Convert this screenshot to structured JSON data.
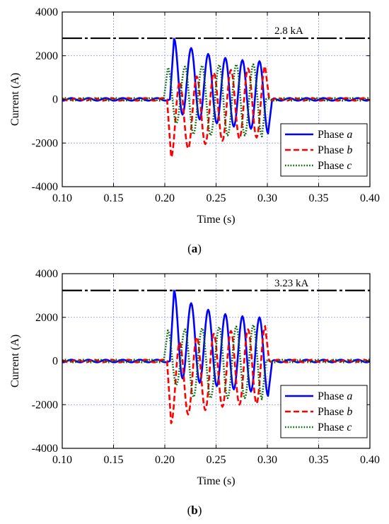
{
  "chart_data": [
    {
      "type": "line",
      "panel_label": "a",
      "xlabel": "Time (s)",
      "ylabel": "Current (A)",
      "xlim": [
        0.1,
        0.4
      ],
      "ylim": [
        -4000,
        4000
      ],
      "xticks": [
        "0.10",
        "0.15",
        "0.20",
        "0.25",
        "0.30",
        "0.35",
        "0.40"
      ],
      "yticks": [
        "-4000",
        "-2000",
        "0",
        "2000",
        "4000"
      ],
      "grid": true,
      "legend_position": "bottom-right",
      "peak_line": {
        "value": 2800,
        "label": "2.8 kA"
      },
      "series": [
        {
          "name": "Phase a",
          "color": "#0000ff",
          "style": "solid",
          "peaks": [
            [
              0.209,
              2780
            ],
            [
              0.2257,
              2350
            ],
            [
              0.2423,
              2080
            ],
            [
              0.259,
              1900
            ],
            [
              0.2757,
              1800
            ],
            [
              0.2923,
              1750
            ]
          ],
          "troughs": [
            [
              0.2173,
              -700
            ],
            [
              0.234,
              -920
            ],
            [
              0.2507,
              -1100
            ],
            [
              0.2673,
              -1250
            ],
            [
              0.284,
              -1350
            ],
            [
              0.3007,
              -1560
            ]
          ]
        },
        {
          "name": "Phase b",
          "color": "#ff0000",
          "style": "dashed",
          "peaks": [
            [
              0.2145,
              800
            ],
            [
              0.2312,
              1050
            ],
            [
              0.2478,
              1220
            ],
            [
              0.2645,
              1350
            ],
            [
              0.2812,
              1420
            ],
            [
              0.2978,
              1520
            ]
          ],
          "troughs": [
            [
              0.2062,
              -2650
            ],
            [
              0.2228,
              -2250
            ],
            [
              0.2395,
              -2050
            ],
            [
              0.2562,
              -1900
            ],
            [
              0.2728,
              -1800
            ],
            [
              0.2895,
              -1750
            ]
          ]
        },
        {
          "name": "Phase c",
          "color": "#006400",
          "style": "dotted",
          "peaks": [
            [
              0.203,
              1450
            ],
            [
              0.2197,
              1500
            ],
            [
              0.2363,
              1550
            ],
            [
              0.253,
              1580
            ],
            [
              0.2697,
              1600
            ],
            [
              0.2863,
              1600
            ]
          ],
          "troughs": [
            [
              0.2113,
              -1100
            ],
            [
              0.228,
              -1600
            ],
            [
              0.2447,
              -1650
            ],
            [
              0.2613,
              -1650
            ],
            [
              0.278,
              -1650
            ],
            [
              0.2947,
              -1700
            ]
          ]
        }
      ]
    },
    {
      "type": "line",
      "panel_label": "b",
      "xlabel": "Time (s)",
      "ylabel": "Current (A)",
      "xlim": [
        0.1,
        0.4
      ],
      "ylim": [
        -4000,
        4000
      ],
      "xticks": [
        "0.10",
        "0.15",
        "0.20",
        "0.25",
        "0.30",
        "0.35",
        "0.40"
      ],
      "yticks": [
        "-4000",
        "-2000",
        "0",
        "2000",
        "4000"
      ],
      "grid": true,
      "legend_position": "bottom-right",
      "peak_line": {
        "value": 3230,
        "label": "3.23 kA"
      },
      "series": [
        {
          "name": "Phase a",
          "color": "#0000ff",
          "style": "solid",
          "peaks": [
            [
              0.209,
              3230
            ],
            [
              0.2257,
              2650
            ],
            [
              0.2423,
              2350
            ],
            [
              0.259,
              2150
            ],
            [
              0.2757,
              2050
            ],
            [
              0.2923,
              2000
            ]
          ],
          "troughs": [
            [
              0.2173,
              -800
            ],
            [
              0.234,
              -1000
            ],
            [
              0.2507,
              -1150
            ],
            [
              0.2673,
              -1300
            ],
            [
              0.284,
              -1400
            ],
            [
              0.3007,
              -1600
            ]
          ]
        },
        {
          "name": "Phase b",
          "color": "#ff0000",
          "style": "dashed",
          "peaks": [
            [
              0.2145,
              850
            ],
            [
              0.2312,
              1100
            ],
            [
              0.2478,
              1250
            ],
            [
              0.2645,
              1380
            ],
            [
              0.2812,
              1450
            ],
            [
              0.2978,
              1600
            ]
          ],
          "troughs": [
            [
              0.2062,
              -2850
            ],
            [
              0.2228,
              -2450
            ],
            [
              0.2395,
              -2250
            ],
            [
              0.2562,
              -2100
            ],
            [
              0.2728,
              -2000
            ],
            [
              0.2895,
              -1950
            ]
          ]
        },
        {
          "name": "Phase c",
          "color": "#006400",
          "style": "dotted",
          "peaks": [
            [
              0.203,
              1400
            ],
            [
              0.2197,
              1450
            ],
            [
              0.2363,
              1500
            ],
            [
              0.253,
              1550
            ],
            [
              0.2697,
              1580
            ],
            [
              0.2863,
              1650
            ]
          ],
          "troughs": [
            [
              0.2113,
              -1100
            ],
            [
              0.228,
              -1650
            ],
            [
              0.2447,
              -1700
            ],
            [
              0.2613,
              -1700
            ],
            [
              0.278,
              -1700
            ],
            [
              0.2947,
              -1750
            ]
          ]
        }
      ]
    }
  ]
}
